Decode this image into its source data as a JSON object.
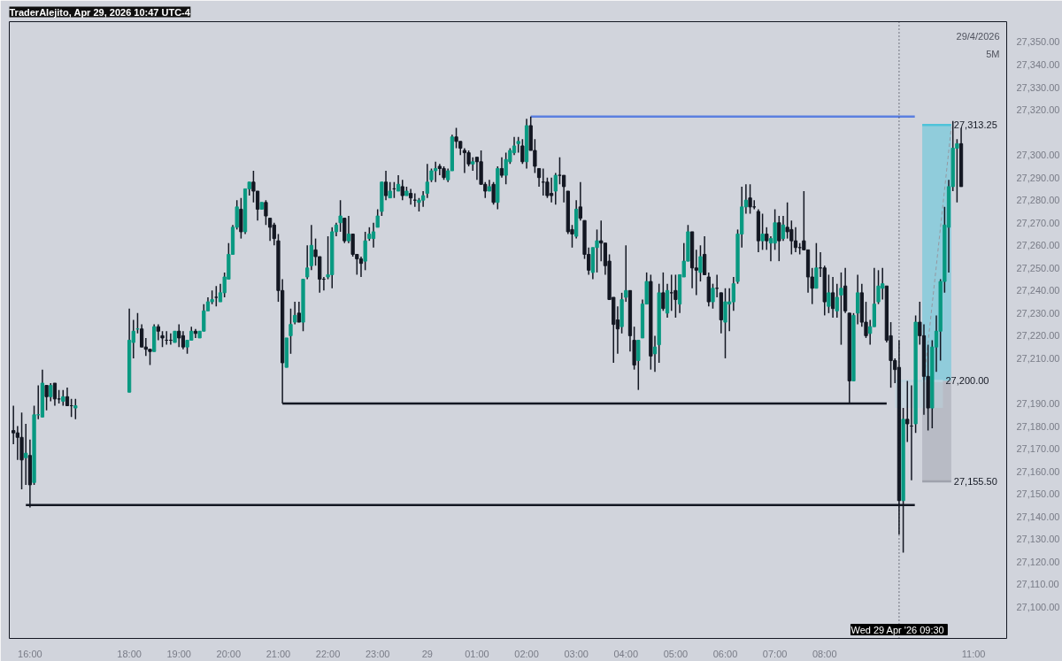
{
  "chart_data": {
    "type": "candlestick",
    "title": "TraderAlejito, Apr 29, 2026 10:47 UTC-4",
    "annotations": [
      "29/4/2026",
      "5M"
    ],
    "x": [
      "2026-04-28T15:40",
      "2026-04-28T15:45",
      "2026-04-28T15:50",
      "2026-04-28T15:55",
      "2026-04-28T16:00",
      "2026-04-28T16:05",
      "2026-04-28T16:10",
      "2026-04-28T16:15",
      "2026-04-28T16:20",
      "2026-04-28T16:25",
      "2026-04-28T16:30",
      "2026-04-28T16:35",
      "2026-04-28T16:40",
      "2026-04-28T16:45",
      "2026-04-28T16:50",
      "2026-04-28T16:55",
      "2026-04-28T18:00",
      "2026-04-28T18:05",
      "2026-04-28T18:10",
      "2026-04-28T18:15",
      "2026-04-28T18:20",
      "2026-04-28T18:25",
      "2026-04-28T18:30",
      "2026-04-28T18:35",
      "2026-04-28T18:40",
      "2026-04-28T18:45",
      "2026-04-28T18:50",
      "2026-04-28T18:55",
      "2026-04-28T19:00",
      "2026-04-28T19:05",
      "2026-04-28T19:10",
      "2026-04-28T19:15",
      "2026-04-28T19:20",
      "2026-04-28T19:25",
      "2026-04-28T19:30",
      "2026-04-28T19:35",
      "2026-04-28T19:40",
      "2026-04-28T19:45",
      "2026-04-28T19:50",
      "2026-04-28T19:55",
      "2026-04-28T20:00",
      "2026-04-28T20:05",
      "2026-04-28T20:10",
      "2026-04-28T20:15",
      "2026-04-28T20:20",
      "2026-04-28T20:25",
      "2026-04-28T20:30",
      "2026-04-28T20:35",
      "2026-04-28T20:40",
      "2026-04-28T20:45",
      "2026-04-28T20:50",
      "2026-04-28T20:55",
      "2026-04-28T21:00",
      "2026-04-28T21:05",
      "2026-04-28T21:10",
      "2026-04-28T21:15",
      "2026-04-28T21:20",
      "2026-04-28T21:25",
      "2026-04-28T21:30",
      "2026-04-28T21:35",
      "2026-04-28T21:40",
      "2026-04-28T21:45",
      "2026-04-28T21:50",
      "2026-04-28T21:55",
      "2026-04-28T22:00",
      "2026-04-28T22:05",
      "2026-04-28T22:10",
      "2026-04-28T22:15",
      "2026-04-28T22:20",
      "2026-04-28T22:25",
      "2026-04-28T22:30",
      "2026-04-28T22:35",
      "2026-04-28T22:40",
      "2026-04-28T22:45",
      "2026-04-28T22:50",
      "2026-04-28T22:55",
      "2026-04-28T23:00",
      "2026-04-28T23:05",
      "2026-04-28T23:10",
      "2026-04-28T23:15",
      "2026-04-28T23:20",
      "2026-04-28T23:25",
      "2026-04-28T23:30",
      "2026-04-28T23:35",
      "2026-04-28T23:40",
      "2026-04-28T23:45",
      "2026-04-28T23:50",
      "2026-04-28T23:55",
      "2026-04-29T00:00",
      "2026-04-29T00:05",
      "2026-04-29T00:10",
      "2026-04-29T00:15",
      "2026-04-29T00:20",
      "2026-04-29T00:25",
      "2026-04-29T00:30",
      "2026-04-29T00:35",
      "2026-04-29T00:40",
      "2026-04-29T00:45",
      "2026-04-29T00:50",
      "2026-04-29T00:55",
      "2026-04-29T01:00",
      "2026-04-29T01:05",
      "2026-04-29T01:10",
      "2026-04-29T01:15",
      "2026-04-29T01:20",
      "2026-04-29T01:25",
      "2026-04-29T01:30",
      "2026-04-29T01:35",
      "2026-04-29T01:40",
      "2026-04-29T01:45",
      "2026-04-29T01:50",
      "2026-04-29T01:55",
      "2026-04-29T02:00",
      "2026-04-29T02:05",
      "2026-04-29T02:10",
      "2026-04-29T02:15",
      "2026-04-29T02:20",
      "2026-04-29T02:25",
      "2026-04-29T02:30",
      "2026-04-29T02:35",
      "2026-04-29T02:40",
      "2026-04-29T02:45",
      "2026-04-29T02:50",
      "2026-04-29T02:55",
      "2026-04-29T03:00",
      "2026-04-29T03:05",
      "2026-04-29T03:10",
      "2026-04-29T03:15",
      "2026-04-29T03:20",
      "2026-04-29T03:25",
      "2026-04-29T03:30",
      "2026-04-29T03:35",
      "2026-04-29T03:40",
      "2026-04-29T03:45",
      "2026-04-29T03:50",
      "2026-04-29T03:55",
      "2026-04-29T04:00",
      "2026-04-29T04:05",
      "2026-04-29T04:10",
      "2026-04-29T04:15",
      "2026-04-29T04:20",
      "2026-04-29T04:25",
      "2026-04-29T04:30",
      "2026-04-29T04:35",
      "2026-04-29T04:40",
      "2026-04-29T04:45",
      "2026-04-29T04:50",
      "2026-04-29T04:55",
      "2026-04-29T05:00",
      "2026-04-29T05:05",
      "2026-04-29T05:10",
      "2026-04-29T05:15",
      "2026-04-29T05:20",
      "2026-04-29T05:25",
      "2026-04-29T05:30",
      "2026-04-29T05:35",
      "2026-04-29T05:40",
      "2026-04-29T05:45",
      "2026-04-29T05:50",
      "2026-04-29T05:55",
      "2026-04-29T06:00",
      "2026-04-29T06:05",
      "2026-04-29T06:10",
      "2026-04-29T06:15",
      "2026-04-29T06:20",
      "2026-04-29T06:25",
      "2026-04-29T06:30",
      "2026-04-29T06:35",
      "2026-04-29T06:40",
      "2026-04-29T06:45",
      "2026-04-29T06:50",
      "2026-04-29T06:55",
      "2026-04-29T07:00",
      "2026-04-29T07:05",
      "2026-04-29T07:10",
      "2026-04-29T07:15",
      "2026-04-29T07:20",
      "2026-04-29T07:25",
      "2026-04-29T07:30",
      "2026-04-29T07:35",
      "2026-04-29T07:40",
      "2026-04-29T07:45",
      "2026-04-29T07:50",
      "2026-04-29T07:55",
      "2026-04-29T08:00",
      "2026-04-29T08:05",
      "2026-04-29T08:10",
      "2026-04-29T08:15",
      "2026-04-29T08:20",
      "2026-04-29T08:25",
      "2026-04-29T08:30",
      "2026-04-29T08:35",
      "2026-04-29T08:40",
      "2026-04-29T08:45",
      "2026-04-29T08:50",
      "2026-04-29T08:55",
      "2026-04-29T09:00",
      "2026-04-29T09:05",
      "2026-04-29T09:10",
      "2026-04-29T09:15",
      "2026-04-29T09:20",
      "2026-04-29T09:25",
      "2026-04-29T09:30",
      "2026-04-29T09:35",
      "2026-04-29T09:40",
      "2026-04-29T09:45",
      "2026-04-29T09:50",
      "2026-04-29T09:55",
      "2026-04-29T10:00",
      "2026-04-29T10:05",
      "2026-04-29T10:10",
      "2026-04-29T10:15",
      "2026-04-29T10:20",
      "2026-04-29T10:25",
      "2026-04-29T10:30",
      "2026-04-29T10:35",
      "2026-04-29T10:40",
      "2026-04-29T10:45"
    ],
    "ohlc": [
      [
        27178,
        27189,
        27172,
        27177
      ],
      [
        27177,
        27180,
        27165,
        27175
      ],
      [
        27175,
        27186,
        27152,
        27165
      ],
      [
        27166,
        27181,
        27154,
        27168
      ],
      [
        27167,
        27174,
        27144,
        27154
      ],
      [
        27155,
        27189,
        27154,
        27185
      ],
      [
        27185,
        27198,
        27183,
        27185
      ],
      [
        27184,
        27205,
        27184,
        27199
      ],
      [
        27198,
        27198,
        27187,
        27193
      ],
      [
        27193,
        27199,
        27191,
        27198
      ],
      [
        27199,
        27199,
        27189,
        27192
      ],
      [
        27192,
        27196,
        27190,
        27192
      ],
      [
        27191,
        27196,
        27189,
        27193
      ],
      [
        27193,
        27197,
        27189,
        27189
      ],
      [
        27189,
        27192,
        27184,
        27189
      ],
      [
        27188,
        27192,
        27183,
        27189
      ],
      [
        27195,
        27232,
        27195,
        27218
      ],
      [
        27217,
        27227,
        27210,
        27222
      ],
      [
        27223,
        27230,
        27221,
        27223
      ],
      [
        27223,
        27225,
        27215,
        27215
      ],
      [
        27215,
        27219,
        27211,
        27214
      ],
      [
        27214,
        27214,
        27207,
        27213
      ],
      [
        27213,
        27225,
        27213,
        27224
      ],
      [
        27224,
        27225,
        27218,
        27222
      ],
      [
        27220,
        27222,
        27215,
        27219
      ],
      [
        27218,
        27222,
        27216,
        27218
      ],
      [
        27218,
        27221,
        27216,
        27218
      ],
      [
        27217,
        27222,
        27217,
        27222
      ],
      [
        27222,
        27225,
        27215,
        27219
      ],
      [
        27220,
        27222,
        27214,
        27215
      ],
      [
        27215,
        27218,
        27212,
        27218
      ],
      [
        27218,
        27224,
        27218,
        27222
      ],
      [
        27222,
        27223,
        27219,
        27221
      ],
      [
        27219,
        27222,
        27219,
        27222
      ],
      [
        27222,
        27234,
        27222,
        27231
      ],
      [
        27231,
        27237,
        27231,
        27235
      ],
      [
        27235,
        27240,
        27234,
        27236
      ],
      [
        27237,
        27242,
        27233,
        27237
      ],
      [
        27235,
        27243,
        27235,
        27239
      ],
      [
        27239,
        27248,
        27237,
        27246
      ],
      [
        27245,
        27261,
        27245,
        27256
      ],
      [
        27256,
        27269,
        27256,
        27268
      ],
      [
        27268,
        27280,
        27267,
        27277
      ],
      [
        27276,
        27281,
        27263,
        27266
      ],
      [
        27266,
        27285,
        27265,
        27285
      ],
      [
        27285,
        27288,
        27282,
        27288
      ],
      [
        27288,
        27293,
        27279,
        27284
      ],
      [
        27284,
        27284,
        27271,
        27276
      ],
      [
        27276,
        27279,
        27276,
        27279
      ],
      [
        27279,
        27280,
        27269,
        27273
      ],
      [
        27272,
        27272,
        27262,
        27268
      ],
      [
        27269,
        27270,
        27260,
        27263
      ],
      [
        27262,
        27265,
        27235,
        27240
      ],
      [
        27240,
        27245,
        27190,
        27208
      ],
      [
        27206,
        27219,
        27206,
        27219
      ],
      [
        27220,
        27232,
        27212,
        27225
      ],
      [
        27226,
        27235,
        27225,
        27229
      ],
      [
        27230,
        27235,
        27226,
        27226
      ],
      [
        27226,
        27245,
        27222,
        27245
      ],
      [
        27246,
        27260,
        27245,
        27250
      ],
      [
        27251,
        27269,
        27249,
        27260
      ],
      [
        27258,
        27263,
        27251,
        27255
      ],
      [
        27255,
        27255,
        27239,
        27245
      ],
      [
        27245,
        27246,
        27240,
        27245
      ],
      [
        27246,
        27264,
        27245,
        27247
      ],
      [
        27247,
        27268,
        27241,
        27266
      ],
      [
        27266,
        27270,
        27264,
        27269
      ],
      [
        27270,
        27280,
        27266,
        27273
      ],
      [
        27272,
        27272,
        27261,
        27262
      ],
      [
        27262,
        27273,
        27261,
        27265
      ],
      [
        27265,
        27265,
        27255,
        27256
      ],
      [
        27256,
        27256,
        27247,
        27254
      ],
      [
        27254,
        27255,
        27246,
        27252
      ],
      [
        27253,
        27266,
        27249,
        27262
      ],
      [
        27263,
        27268,
        27262,
        27265
      ],
      [
        27263,
        27270,
        27259,
        27266
      ],
      [
        27268,
        27276,
        27268,
        27273
      ],
      [
        27275,
        27288,
        27273,
        27288
      ],
      [
        27288,
        27293,
        27280,
        27282
      ],
      [
        27281,
        27288,
        27281,
        27284
      ],
      [
        27285,
        27288,
        27281,
        27285
      ],
      [
        27284,
        27291,
        27284,
        27287
      ],
      [
        27286,
        27289,
        27280,
        27282
      ],
      [
        27282,
        27286,
        27282,
        27284
      ],
      [
        27283,
        27285,
        27278,
        27281
      ],
      [
        27280,
        27283,
        27277,
        27280
      ],
      [
        27279,
        27281,
        27275,
        27280
      ],
      [
        27280,
        27284,
        27277,
        27282
      ],
      [
        27283,
        27296,
        27281,
        27288
      ],
      [
        27289,
        27294,
        27288,
        27293
      ],
      [
        27293,
        27297,
        27288,
        27294
      ],
      [
        27295,
        27296,
        27291,
        27294
      ],
      [
        27294,
        27295,
        27289,
        27290
      ],
      [
        27289,
        27294,
        27288,
        27293
      ],
      [
        27293,
        27309,
        27293,
        27308
      ],
      [
        27308,
        27312,
        27303,
        27306
      ],
      [
        27306,
        27306,
        27300,
        27303
      ],
      [
        27302,
        27303,
        27292,
        27301
      ],
      [
        27301,
        27302,
        27295,
        27296
      ],
      [
        27296,
        27299,
        27293,
        27297
      ],
      [
        27299,
        27299,
        27289,
        27297
      ],
      [
        27297,
        27302,
        27287,
        27287
      ],
      [
        27287,
        27288,
        27281,
        27284
      ],
      [
        27284,
        27289,
        27284,
        27286
      ],
      [
        27287,
        27288,
        27278,
        27279
      ],
      [
        27279,
        27295,
        27276,
        27294
      ],
      [
        27294,
        27299,
        27290,
        27291
      ],
      [
        27291,
        27301,
        27287,
        27298
      ],
      [
        27297,
        27303,
        27296,
        27302
      ],
      [
        27301,
        27308,
        27300,
        27304
      ],
      [
        27305,
        27308,
        27301,
        27306
      ],
      [
        27304,
        27307,
        27296,
        27297
      ],
      [
        27297,
        27316,
        27294,
        27313
      ],
      [
        27313,
        27317,
        27302,
        27302
      ],
      [
        27302,
        27307,
        27292,
        27295
      ],
      [
        27294,
        27294,
        27286,
        27290
      ],
      [
        27288,
        27294,
        27282,
        27288
      ],
      [
        27288,
        27290,
        27281,
        27282
      ],
      [
        27283,
        27290,
        27279,
        27282
      ],
      [
        27284,
        27292,
        27278,
        27291
      ],
      [
        27291,
        27299,
        27287,
        27291
      ],
      [
        27291,
        27291,
        27279,
        27286
      ],
      [
        27284,
        27284,
        27265,
        27266
      ],
      [
        27267,
        27269,
        27259,
        27265
      ],
      [
        27264,
        27280,
        27263,
        27276
      ],
      [
        27277,
        27288,
        27271,
        27272
      ],
      [
        27271,
        27271,
        27254,
        27256
      ],
      [
        27256,
        27259,
        27247,
        27249
      ],
      [
        27248,
        27259,
        27245,
        27259
      ],
      [
        27259,
        27267,
        27248,
        27262
      ],
      [
        27262,
        27271,
        27253,
        27261
      ],
      [
        27261,
        27261,
        27247,
        27251
      ],
      [
        27253,
        27256,
        27236,
        27236
      ],
      [
        27237,
        27237,
        27208,
        27225
      ],
      [
        27227,
        27233,
        27212,
        27223
      ],
      [
        27224,
        27239,
        27221,
        27236
      ],
      [
        27237,
        27260,
        27235,
        27240
      ],
      [
        27240,
        27240,
        27213,
        27220
      ],
      [
        27218,
        27224,
        27205,
        27207
      ],
      [
        27209,
        27218,
        27196,
        27218
      ],
      [
        27219,
        27236,
        27219,
        27234
      ],
      [
        27234,
        27248,
        27234,
        27244
      ],
      [
        27244,
        27247,
        27205,
        27211
      ],
      [
        27212,
        27220,
        27204,
        27215
      ],
      [
        27216,
        27243,
        27208,
        27239
      ],
      [
        27239,
        27248,
        27231,
        27232
      ],
      [
        27230,
        27243,
        27228,
        27240
      ],
      [
        27239,
        27247,
        27231,
        27239
      ],
      [
        27240,
        27247,
        27228,
        27236
      ],
      [
        27234,
        27247,
        27230,
        27247
      ],
      [
        27246,
        27261,
        27246,
        27253
      ],
      [
        27253,
        27269,
        27253,
        27266
      ],
      [
        27266,
        27266,
        27241,
        27250
      ],
      [
        27250,
        27258,
        27238,
        27249
      ],
      [
        27248,
        27260,
        27244,
        27255
      ],
      [
        27256,
        27264,
        27247,
        27247
      ],
      [
        27246,
        27248,
        27233,
        27235
      ],
      [
        27235,
        27243,
        27232,
        27241
      ],
      [
        27241,
        27247,
        27237,
        27241
      ],
      [
        27239,
        27239,
        27221,
        27227
      ],
      [
        27226,
        27241,
        27210,
        27235
      ],
      [
        27234,
        27241,
        27222,
        27235
      ],
      [
        27235,
        27246,
        27231,
        27243
      ],
      [
        27244,
        27267,
        27243,
        27265
      ],
      [
        27265,
        27286,
        27259,
        27277
      ],
      [
        27277,
        27287,
        27274,
        27280
      ],
      [
        27281,
        27287,
        27274,
        27277
      ],
      [
        27277,
        27280,
        27276,
        27277
      ],
      [
        27275,
        27276,
        27257,
        27262
      ],
      [
        27262,
        27274,
        27258,
        27265
      ],
      [
        27265,
        27268,
        27258,
        27262
      ],
      [
        27261,
        27264,
        27253,
        27263
      ],
      [
        27261,
        27276,
        27258,
        27270
      ],
      [
        27270,
        27273,
        27253,
        27262
      ],
      [
        27263,
        27273,
        27262,
        27269
      ],
      [
        27268,
        27279,
        27263,
        27266
      ],
      [
        27267,
        27271,
        27256,
        27262
      ],
      [
        27262,
        27268,
        27257,
        27259
      ],
      [
        27259,
        27261,
        27256,
        27259
      ],
      [
        27262,
        27284,
        27258,
        27258
      ],
      [
        27258,
        27258,
        27239,
        27246
      ],
      [
        27246,
        27250,
        27234,
        27241
      ],
      [
        27241,
        27261,
        27241,
        27250
      ],
      [
        27250,
        27257,
        27246,
        27250
      ],
      [
        27250,
        27251,
        27229,
        27235
      ],
      [
        27233,
        27247,
        27230,
        27239
      ],
      [
        27239,
        27246,
        27228,
        27232
      ],
      [
        27231,
        27243,
        27228,
        27237
      ],
      [
        27238,
        27248,
        27216,
        27241
      ],
      [
        27242,
        27250,
        27230,
        27231
      ],
      [
        27230,
        27230,
        27190,
        27200
      ],
      [
        27200,
        27230,
        27200,
        27229
      ],
      [
        27230,
        27247,
        27225,
        27239
      ],
      [
        27239,
        27243,
        27224,
        27226
      ],
      [
        27226,
        27235,
        27219,
        27220
      ],
      [
        27221,
        27227,
        27216,
        27224
      ],
      [
        27224,
        27250,
        27224,
        27234
      ],
      [
        27235,
        27249,
        27234,
        27242
      ],
      [
        27241,
        27250,
        27236,
        27243
      ],
      [
        27242,
        27242,
        27217,
        27218
      ],
      [
        27220,
        27226,
        27197,
        27209
      ],
      [
        27209,
        27210,
        27199,
        27205
      ],
      [
        27206,
        27218,
        27132,
        27147
      ],
      [
        27147,
        27188,
        27124,
        27183
      ],
      [
        27183,
        27200,
        27173,
        27181
      ],
      [
        27180,
        27198,
        27156,
        27180
      ],
      [
        27181,
        27229,
        27177,
        27226
      ],
      [
        27226,
        27235,
        27216,
        27220
      ],
      [
        27220,
        27225,
        27185,
        27202
      ],
      [
        27202,
        27216,
        27178,
        27188
      ],
      [
        27188,
        27218,
        27179,
        27215
      ],
      [
        27215,
        27229,
        27204,
        27222
      ],
      [
        27222,
        27245,
        27209,
        27244
      ],
      [
        27244,
        27277,
        27239,
        27269
      ],
      [
        27268,
        27289,
        27248,
        27286
      ],
      [
        27286,
        27315,
        27284,
        27303
      ],
      [
        27303,
        27307,
        27279,
        27305
      ],
      [
        27305,
        27312,
        27286,
        27286
      ]
    ],
    "colors": [
      "#131722",
      "#131722",
      "#131722",
      "#089981",
      "#131722",
      "#089981",
      "#089981",
      "#089981",
      "#131722",
      "#089981",
      "#131722",
      "#131722",
      "#089981",
      "#131722",
      "#131722",
      "#089981",
      "#089981",
      "#089981",
      "#089981",
      "#131722",
      "#131722",
      "#131722",
      "#089981",
      "#131722",
      "#131722",
      "#131722",
      "#131722",
      "#089981",
      "#131722",
      "#131722",
      "#089981",
      "#089981",
      "#131722",
      "#089981",
      "#089981",
      "#089981",
      "#089981",
      "#131722",
      "#089981",
      "#089981",
      "#089981",
      "#089981",
      "#089981",
      "#131722",
      "#089981",
      "#089981",
      "#131722",
      "#131722",
      "#089981",
      "#131722",
      "#131722",
      "#131722",
      "#131722",
      "#131722",
      "#089981",
      "#089981",
      "#089981",
      "#131722",
      "#089981",
      "#089981",
      "#089981",
      "#131722",
      "#131722",
      "#131722",
      "#089981",
      "#089981",
      "#089981",
      "#089981",
      "#131722",
      "#089981",
      "#131722",
      "#131722",
      "#131722",
      "#089981",
      "#089981",
      "#089981",
      "#089981",
      "#089981",
      "#131722",
      "#089981",
      "#131722",
      "#089981",
      "#131722",
      "#089981",
      "#131722",
      "#131722",
      "#089981",
      "#089981",
      "#089981",
      "#089981",
      "#089981",
      "#131722",
      "#131722",
      "#089981",
      "#089981",
      "#131722",
      "#131722",
      "#131722",
      "#131722",
      "#089981",
      "#131722",
      "#131722",
      "#131722",
      "#089981",
      "#131722",
      "#089981",
      "#131722",
      "#089981",
      "#089981",
      "#089981",
      "#089981",
      "#131722",
      "#089981",
      "#131722",
      "#131722",
      "#131722",
      "#131722",
      "#131722",
      "#131722",
      "#089981",
      "#131722",
      "#131722",
      "#131722",
      "#131722",
      "#089981",
      "#131722",
      "#131722",
      "#131722",
      "#089981",
      "#089981",
      "#131722",
      "#131722",
      "#131722",
      "#131722",
      "#131722",
      "#089981",
      "#089981",
      "#131722",
      "#131722",
      "#089981",
      "#089981",
      "#089981",
      "#131722",
      "#089981",
      "#089981",
      "#131722",
      "#089981",
      "#131722",
      "#131722",
      "#089981",
      "#089981",
      "#089981",
      "#131722",
      "#131722",
      "#089981",
      "#131722",
      "#131722",
      "#089981",
      "#131722",
      "#131722",
      "#089981",
      "#089981",
      "#089981",
      "#089981",
      "#089981",
      "#089981",
      "#131722",
      "#131722",
      "#131722",
      "#089981",
      "#131722",
      "#089981",
      "#089981",
      "#131722",
      "#089981",
      "#131722",
      "#131722",
      "#131722",
      "#131722",
      "#131722",
      "#131722",
      "#131722",
      "#089981",
      "#131722",
      "#131722",
      "#089981",
      "#131722",
      "#089981",
      "#089981",
      "#131722",
      "#131722",
      "#089981",
      "#089981",
      "#131722",
      "#131722",
      "#089981",
      "#089981",
      "#089981",
      "#089981",
      "#131722",
      "#131722",
      "#131722",
      "#131722",
      "#089981",
      "#131722",
      "#131722",
      "#089981",
      "#131722",
      "#131722",
      "#131722",
      "#089981",
      "#089981",
      "#089981",
      "#089981",
      "#089981",
      "#089981",
      "#089981",
      "#131722"
    ],
    "series": [
      {
        "type": "line",
        "x": [
          "2026-04-29T09:58",
          "2026-04-29T10:33"
        ],
        "values": [
          27313.25,
          27313.25
        ],
        "value_labels": [
          null,
          "27,313.25"
        ],
        "lower": [
          27200,
          27200
        ],
        "upper": [
          27313.25,
          27313.25
        ],
        "color": "#4fc3d9"
      },
      {
        "type": "line",
        "x": [
          "2026-04-29T09:58",
          "2026-04-29T10:33"
        ],
        "values": [
          27155.5,
          27155.5
        ],
        "value_labels": [
          null,
          "27,155.50"
        ],
        "lower": [
          27155.5,
          27155.5
        ],
        "upper": [
          27200,
          27200
        ],
        "color": "#9fa2ad"
      },
      {
        "type": "line",
        "x": [
          "2026-04-29T09:25",
          "2026-04-29T10:23"
        ],
        "values": [
          27200,
          27200
        ],
        "value_labels": [
          null,
          "27,200.00"
        ],
        "lower": [
          27188,
          27188
        ],
        "upper": [
          27200,
          27200
        ],
        "color": "#b9d3de"
      },
      {
        "type": "line",
        "x": [
          "2026-04-29T02:05",
          "2026-04-29T09:49"
        ],
        "values": [
          27317,
          27317
        ],
        "color": "#5b7fe0"
      },
      {
        "type": "line",
        "x": [
          "2026-04-28T21:05",
          "2026-04-29T09:15"
        ],
        "values": [
          27190,
          27190
        ],
        "color": "#131722"
      },
      {
        "type": "line",
        "x": [
          "2026-04-28T15:55",
          "2026-04-29T09:49"
        ],
        "values": [
          27145,
          27145
        ],
        "color": "#131722"
      },
      {
        "type": "line",
        "x": [
          "2026-04-29T10:00",
          "2026-04-29T10:33"
        ],
        "values": [
          27200,
          27312
        ],
        "color": "#9598a1",
        "line_style": "dashed"
      }
    ],
    "ref_lines": [
      {
        "axis": "x",
        "value": "2026-04-29T09:30",
        "label": "Wed 29 Apr '26  09:30",
        "color": "#131722",
        "line_style": "dotted"
      }
    ],
    "xlim": [
      "2026-04-28T15:35",
      "2026-04-29T11:40"
    ],
    "xticks": [
      {
        "value": "2026-04-28T16:00",
        "label": "16:00"
      },
      {
        "value": "2026-04-28T18:00",
        "label": "18:00"
      },
      {
        "value": "2026-04-28T19:00",
        "label": "19:00"
      },
      {
        "value": "2026-04-28T20:00",
        "label": "20:00"
      },
      {
        "value": "2026-04-28T21:00",
        "label": "21:00"
      },
      {
        "value": "2026-04-28T22:00",
        "label": "22:00"
      },
      {
        "value": "2026-04-28T23:00",
        "label": "23:00"
      },
      {
        "value": "2026-04-29T00:00",
        "label": "29"
      },
      {
        "value": "2026-04-29T01:00",
        "label": "01:00"
      },
      {
        "value": "2026-04-29T02:00",
        "label": "02:00"
      },
      {
        "value": "2026-04-29T03:00",
        "label": "03:00"
      },
      {
        "value": "2026-04-29T04:00",
        "label": "04:00"
      },
      {
        "value": "2026-04-29T05:00",
        "label": "05:00"
      },
      {
        "value": "2026-04-29T06:00",
        "label": "06:00"
      },
      {
        "value": "2026-04-29T07:00",
        "label": "07:00"
      },
      {
        "value": "2026-04-29T08:00",
        "label": "08:00"
      },
      {
        "value": "2026-04-29T11:00",
        "label": "11:00"
      }
    ],
    "ylim": [
      27086,
      27359
    ],
    "yticks": [
      {
        "value": 27100,
        "label": "27,100.00"
      },
      {
        "value": 27110,
        "label": "27,110.00"
      },
      {
        "value": 27120,
        "label": "27,120.00"
      },
      {
        "value": 27130,
        "label": "27,130.00"
      },
      {
        "value": 27140,
        "label": "27,140.00"
      },
      {
        "value": 27150,
        "label": "27,150.00"
      },
      {
        "value": 27160,
        "label": "27,160.00"
      },
      {
        "value": 27170,
        "label": "27,170.00"
      },
      {
        "value": 27180,
        "label": "27,180.00"
      },
      {
        "value": 27190,
        "label": "27,190.00"
      },
      {
        "value": 27210,
        "label": "27,210.00"
      },
      {
        "value": 27220,
        "label": "27,220.00"
      },
      {
        "value": 27230,
        "label": "27,230.00"
      },
      {
        "value": 27240,
        "label": "27,240.00"
      },
      {
        "value": 27250,
        "label": "27,250.00"
      },
      {
        "value": 27260,
        "label": "27,260.00"
      },
      {
        "value": 27270,
        "label": "27,270.00"
      },
      {
        "value": 27280,
        "label": "27,280.00"
      },
      {
        "value": 27290,
        "label": "27,290.00"
      },
      {
        "value": 27300,
        "label": "27,300.00"
      },
      {
        "value": 27320,
        "label": "27,320.00"
      },
      {
        "value": 27330,
        "label": "27,330.00"
      },
      {
        "value": 27340,
        "label": "27,340.00"
      },
      {
        "value": 27350,
        "label": "27,350.00"
      }
    ],
    "grid": false
  }
}
